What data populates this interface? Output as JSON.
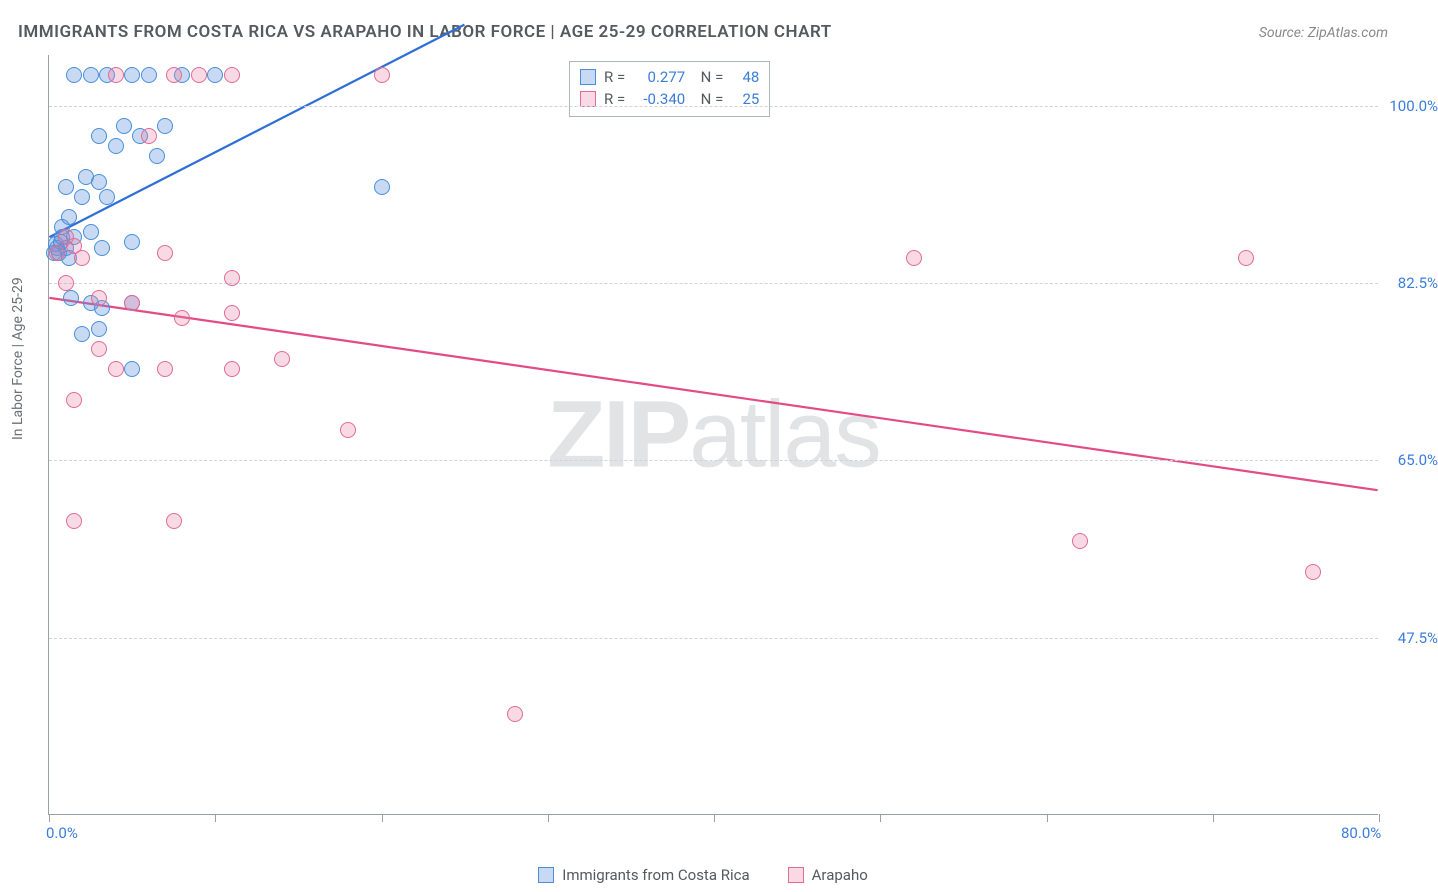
{
  "title": "IMMIGRANTS FROM COSTA RICA VS ARAPAHO IN LABOR FORCE | AGE 25-29 CORRELATION CHART",
  "source": "Source: ZipAtlas.com",
  "y_axis_label": "In Labor Force | Age 25-29",
  "watermark": {
    "bold": "ZIP",
    "rest": "atlas"
  },
  "chart": {
    "type": "scatter",
    "xlim": [
      0,
      80
    ],
    "ylim": [
      30,
      105
    ],
    "x_ticks": [
      0,
      10,
      20,
      30,
      40,
      50,
      60,
      70,
      80
    ],
    "x_tick_labels": {
      "0": "0.0%",
      "80": "80.0%"
    },
    "y_ticks": [
      47.5,
      65.0,
      82.5,
      100.0
    ],
    "y_tick_labels": [
      "47.5%",
      "65.0%",
      "82.5%",
      "100.0%"
    ],
    "grid_color": "#d0d4d8",
    "axis_color": "#9aa0a6",
    "tick_label_color": "#3b7dd8",
    "marker_size": 16,
    "series": [
      {
        "name": "Immigrants from Costa Rica",
        "color_fill": "rgba(96,150,220,0.35)",
        "color_stroke": "#4a8fd8",
        "points": [
          [
            0.5,
            86
          ],
          [
            0.6,
            85.5
          ],
          [
            0.4,
            86.3
          ],
          [
            1.0,
            86
          ],
          [
            0.8,
            87
          ],
          [
            1.2,
            85
          ],
          [
            0.3,
            85.5
          ],
          [
            0.7,
            86.5
          ],
          [
            1.5,
            103
          ],
          [
            2.5,
            103
          ],
          [
            3.5,
            103
          ],
          [
            5,
            103
          ],
          [
            6,
            103
          ],
          [
            8,
            103
          ],
          [
            10,
            103
          ],
          [
            3,
            97
          ],
          [
            4,
            96
          ],
          [
            4.5,
            98
          ],
          [
            5.5,
            97
          ],
          [
            6.5,
            95
          ],
          [
            7,
            98
          ],
          [
            1,
            92
          ],
          [
            2,
            91
          ],
          [
            2.2,
            93
          ],
          [
            3,
            92.5
          ],
          [
            3.5,
            91
          ],
          [
            1.5,
            87
          ],
          [
            2.5,
            87.5
          ],
          [
            0.8,
            88
          ],
          [
            1.2,
            89
          ],
          [
            3.2,
            86
          ],
          [
            5,
            86.5
          ],
          [
            1.3,
            81
          ],
          [
            2.5,
            80.5
          ],
          [
            3.2,
            80
          ],
          [
            5,
            80.5
          ],
          [
            2,
            77.5
          ],
          [
            3,
            78
          ],
          [
            5,
            74
          ],
          [
            20,
            92
          ]
        ],
        "trend": {
          "x1": 0,
          "y1": 87,
          "x2": 25,
          "y2": 108,
          "color": "#2e6ed6",
          "width": 2.2
        }
      },
      {
        "name": "Arapaho",
        "color_fill": "rgba(236,128,164,0.3)",
        "color_stroke": "#e06b97",
        "points": [
          [
            4,
            103
          ],
          [
            7.5,
            103
          ],
          [
            9,
            103
          ],
          [
            11,
            103
          ],
          [
            20,
            103
          ],
          [
            6,
            97
          ],
          [
            1,
            87
          ],
          [
            0.5,
            85.5
          ],
          [
            1.5,
            86.2
          ],
          [
            2,
            85
          ],
          [
            7,
            85.5
          ],
          [
            1,
            82.5
          ],
          [
            3,
            81
          ],
          [
            5,
            80.5
          ],
          [
            11,
            83
          ],
          [
            8,
            79
          ],
          [
            11,
            79.5
          ],
          [
            3,
            76
          ],
          [
            4,
            74
          ],
          [
            7,
            74
          ],
          [
            11,
            74
          ],
          [
            14,
            75
          ],
          [
            1.5,
            71
          ],
          [
            18,
            68
          ],
          [
            1.5,
            59
          ],
          [
            7.5,
            59
          ],
          [
            52,
            85
          ],
          [
            72,
            85
          ],
          [
            62,
            57
          ],
          [
            76,
            54
          ],
          [
            28,
            40
          ]
        ],
        "trend": {
          "x1": 0,
          "y1": 81,
          "x2": 80,
          "y2": 62,
          "color": "#e34b83",
          "width": 2.2
        }
      }
    ]
  },
  "stats": [
    {
      "color": "blue",
      "r": "0.277",
      "n": "48"
    },
    {
      "color": "pink",
      "r": "-0.340",
      "n": "25"
    }
  ],
  "legend": [
    {
      "color": "blue",
      "label": "Immigrants from Costa Rica"
    },
    {
      "color": "pink",
      "label": "Arapaho"
    }
  ]
}
